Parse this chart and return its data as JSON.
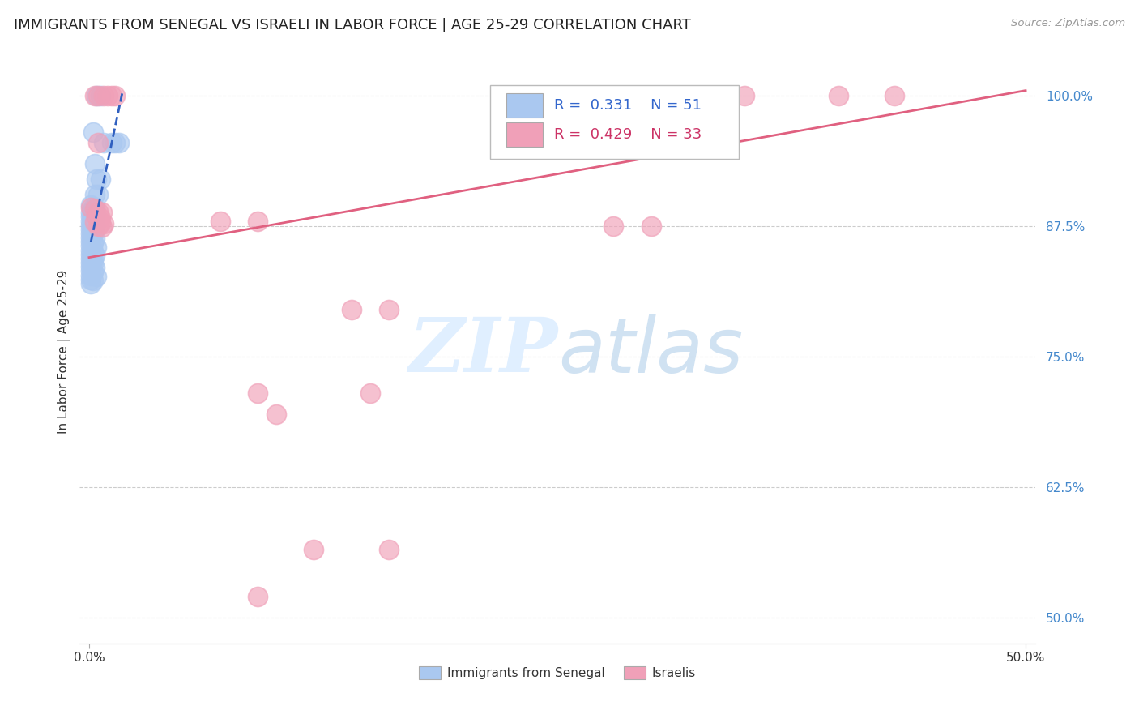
{
  "title": "IMMIGRANTS FROM SENEGAL VS ISRAELI IN LABOR FORCE | AGE 25-29 CORRELATION CHART",
  "source": "Source: ZipAtlas.com",
  "ylabel": "In Labor Force | Age 25-29",
  "ytick_labels": [
    "100.0%",
    "87.5%",
    "75.0%",
    "62.5%",
    "50.0%"
  ],
  "ytick_values": [
    1.0,
    0.875,
    0.75,
    0.625,
    0.5
  ],
  "xtick_labels": [
    "0.0%",
    "50.0%"
  ],
  "xtick_values": [
    0.0,
    0.5
  ],
  "xmin": -0.005,
  "xmax": 0.505,
  "ymin": 0.475,
  "ymax": 1.035,
  "legend_blue_r": "0.331",
  "legend_blue_n": "51",
  "legend_pink_r": "0.429",
  "legend_pink_n": "33",
  "legend_label_blue": "Immigrants from Senegal",
  "legend_label_pink": "Israelis",
  "watermark_zip": "ZIP",
  "watermark_atlas": "atlas",
  "blue_color": "#aac8f0",
  "blue_edge_color": "#aac8f0",
  "pink_color": "#f0a0b8",
  "pink_edge_color": "#f0a0b8",
  "blue_line_color": "#3060c0",
  "pink_line_color": "#e06080",
  "blue_scatter": [
    [
      0.004,
      1.0
    ],
    [
      0.006,
      1.0
    ],
    [
      0.002,
      0.965
    ],
    [
      0.008,
      0.955
    ],
    [
      0.012,
      0.955
    ],
    [
      0.014,
      0.955
    ],
    [
      0.016,
      0.955
    ],
    [
      0.003,
      0.935
    ],
    [
      0.004,
      0.92
    ],
    [
      0.006,
      0.92
    ],
    [
      0.003,
      0.905
    ],
    [
      0.005,
      0.905
    ],
    [
      0.001,
      0.895
    ],
    [
      0.002,
      0.893
    ],
    [
      0.003,
      0.892
    ],
    [
      0.001,
      0.888
    ],
    [
      0.002,
      0.887
    ],
    [
      0.003,
      0.886
    ],
    [
      0.001,
      0.884
    ],
    [
      0.002,
      0.883
    ],
    [
      0.001,
      0.88
    ],
    [
      0.002,
      0.879
    ],
    [
      0.001,
      0.876
    ],
    [
      0.003,
      0.875
    ],
    [
      0.001,
      0.872
    ],
    [
      0.002,
      0.871
    ],
    [
      0.001,
      0.868
    ],
    [
      0.002,
      0.867
    ],
    [
      0.001,
      0.864
    ],
    [
      0.003,
      0.863
    ],
    [
      0.001,
      0.86
    ],
    [
      0.002,
      0.859
    ],
    [
      0.001,
      0.856
    ],
    [
      0.004,
      0.855
    ],
    [
      0.001,
      0.852
    ],
    [
      0.002,
      0.851
    ],
    [
      0.001,
      0.848
    ],
    [
      0.003,
      0.847
    ],
    [
      0.001,
      0.844
    ],
    [
      0.002,
      0.843
    ],
    [
      0.001,
      0.84
    ],
    [
      0.002,
      0.839
    ],
    [
      0.001,
      0.836
    ],
    [
      0.003,
      0.835
    ],
    [
      0.001,
      0.832
    ],
    [
      0.002,
      0.831
    ],
    [
      0.001,
      0.828
    ],
    [
      0.004,
      0.827
    ],
    [
      0.001,
      0.824
    ],
    [
      0.002,
      0.823
    ],
    [
      0.001,
      0.82
    ]
  ],
  "pink_scatter": [
    [
      0.003,
      1.0
    ],
    [
      0.005,
      1.0
    ],
    [
      0.008,
      1.0
    ],
    [
      0.01,
      1.0
    ],
    [
      0.012,
      1.0
    ],
    [
      0.014,
      1.0
    ],
    [
      0.005,
      0.955
    ],
    [
      0.001,
      0.893
    ],
    [
      0.003,
      0.891
    ],
    [
      0.005,
      0.889
    ],
    [
      0.007,
      0.888
    ],
    [
      0.004,
      0.884
    ],
    [
      0.006,
      0.883
    ],
    [
      0.003,
      0.879
    ],
    [
      0.006,
      0.878
    ],
    [
      0.008,
      0.877
    ],
    [
      0.005,
      0.875
    ],
    [
      0.007,
      0.874
    ],
    [
      0.14,
      0.795
    ],
    [
      0.16,
      0.795
    ],
    [
      0.09,
      0.715
    ],
    [
      0.15,
      0.715
    ],
    [
      0.35,
      1.0
    ],
    [
      0.4,
      1.0
    ],
    [
      0.43,
      1.0
    ],
    [
      0.07,
      0.88
    ],
    [
      0.09,
      0.88
    ],
    [
      0.1,
      0.695
    ],
    [
      0.12,
      0.565
    ],
    [
      0.16,
      0.565
    ],
    [
      0.09,
      0.52
    ],
    [
      0.3,
      0.875
    ],
    [
      0.28,
      0.875
    ]
  ],
  "blue_trendline": [
    [
      0.001,
      0.86
    ],
    [
      0.018,
      1.005
    ]
  ],
  "pink_trendline": [
    [
      0.0,
      0.845
    ],
    [
      0.5,
      1.005
    ]
  ],
  "grid_color": "#cccccc",
  "background_color": "#ffffff",
  "title_fontsize": 13,
  "axis_label_fontsize": 11,
  "tick_fontsize": 11,
  "legend_fontsize": 13
}
